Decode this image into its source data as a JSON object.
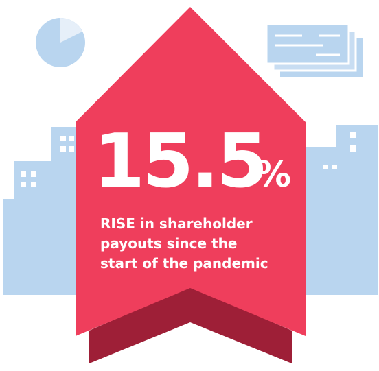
{
  "stat": {
    "value": "15.5",
    "unit": "%"
  },
  "caption": [
    "RISE in shareholder",
    "payouts since the",
    "start of the pandemic"
  ]
}
